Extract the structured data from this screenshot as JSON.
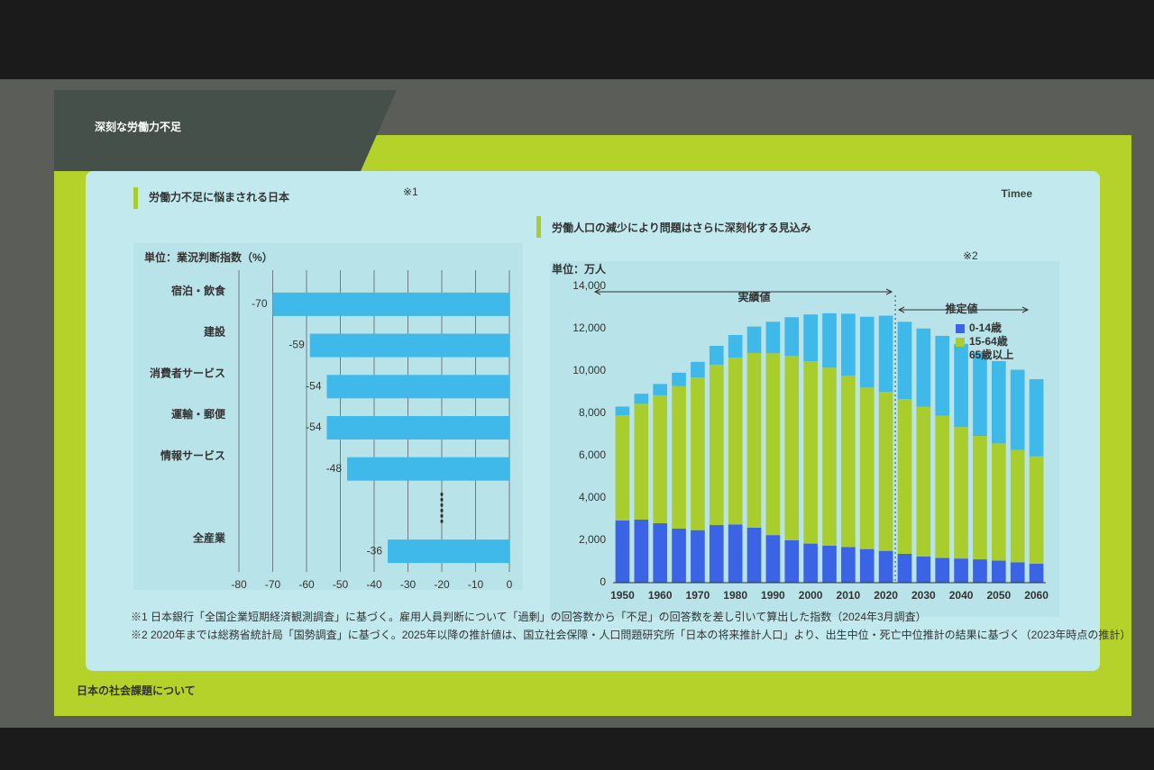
{
  "slide": {
    "title": "深刻な労働力不足",
    "brand": "Timee",
    "footer": "日本の社会課題について",
    "notes": [
      "※1 日本銀行「全国企業短期経済観測調査」に基づく。雇用人員判断について「過剰」の回答数から「不足」の回答数を差し引いて算出した指数（2024年3月調査）",
      "※2 2020年までは総務省統計局「国勢調査」に基づく。2025年以降の推計値は、国立社会保障・人口問題研究所「日本の将来推計人口」より、出生中位・死亡中位推計の結果に基づく（2023年時点の推計）"
    ]
  },
  "chart_data": [
    {
      "type": "hbar",
      "title": "労働力不足に悩まされる日本",
      "title_note": "※1",
      "unit": "単位：業況判断指数（%）",
      "categories": [
        "宿泊・飲食",
        "建設",
        "消費者サービス",
        "運輸・郵便",
        "情報サービス",
        null,
        "全産業"
      ],
      "values": [
        -70,
        -59,
        -54,
        -54,
        -48,
        null,
        -36
      ],
      "color": "#3fb8ea",
      "xlim": [
        -80,
        0
      ],
      "xticks": [
        -80,
        -70,
        -60,
        -50,
        -40,
        -30,
        -20,
        -10,
        0
      ],
      "grid": true
    },
    {
      "type": "stacked-bar",
      "title": "労働人口の減少により問題はさらに深刻化する見込み",
      "title_note": "※2",
      "unit": "単位：万人",
      "annotations": [
        "実績値",
        "推定値"
      ],
      "x": [
        1950,
        1955,
        1960,
        1965,
        1970,
        1975,
        1980,
        1985,
        1990,
        1995,
        2000,
        2005,
        2010,
        2015,
        2020,
        2025,
        2030,
        2035,
        2040,
        2045,
        2050,
        2055,
        2060
      ],
      "series": [
        {
          "name": "0-14歳",
          "color": "#3b63e6",
          "values": [
            2943,
            2980,
            2807,
            2553,
            2482,
            2722,
            2752,
            2603,
            2249,
            2001,
            1847,
            1752,
            1680,
            1589,
            1503,
            1363,
            1240,
            1169,
            1142,
            1103,
            1041,
            964,
            893
          ]
        },
        {
          "name": "15-64歳",
          "color": "#a9cd2c",
          "values": [
            4966,
            5473,
            6047,
            6744,
            7212,
            7581,
            7884,
            8251,
            8590,
            8716,
            8622,
            8409,
            8103,
            7629,
            7509,
            7310,
            7076,
            6722,
            6213,
            5832,
            5540,
            5307,
            5078
          ]
        },
        {
          "name": "65歳以上",
          "color": "#3fb8ea",
          "values": [
            411,
            475,
            535,
            624,
            739,
            887,
            1065,
            1247,
            1489,
            1826,
            2204,
            2567,
            2925,
            3347,
            3603,
            3653,
            3696,
            3773,
            3928,
            3945,
            3888,
            3790,
            3644
          ]
        }
      ],
      "xlim": [
        1947.5,
        2062.5
      ],
      "xticks": [
        1950,
        1960,
        1970,
        1980,
        1990,
        2000,
        2010,
        2020,
        2030,
        2040,
        2050,
        2060
      ],
      "ylim": [
        0,
        14000
      ],
      "yticks": [
        0,
        {
          "value": 2000,
          "label": "2,000"
        },
        {
          "value": 4000,
          "label": "4,000"
        },
        {
          "value": 6000,
          "label": "6,000"
        },
        {
          "value": 8000,
          "label": "8,000"
        },
        {
          "value": 10000,
          "label": "10,000"
        },
        {
          "value": 12000,
          "label": "12,000"
        },
        {
          "value": 14000,
          "label": "14,000"
        }
      ]
    }
  ]
}
